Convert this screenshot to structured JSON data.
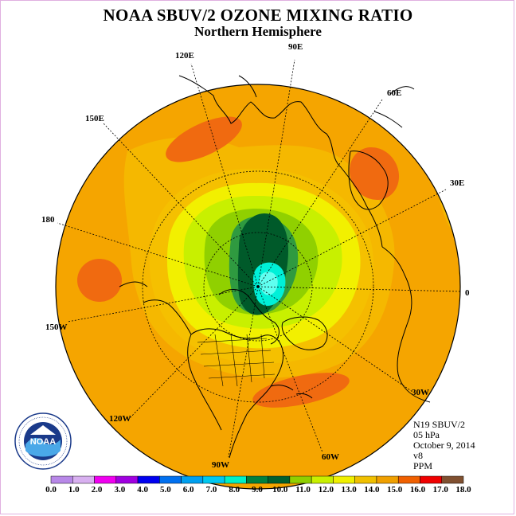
{
  "title": "NOAA SBUV/2 OZONE MIXING RATIO",
  "subtitle": "Northern Hemisphere",
  "longitude_labels": [
    "90E",
    "60E",
    "30E",
    "0",
    "30W",
    "60W",
    "90W",
    "120W",
    "150W",
    "180",
    "150E",
    "120E"
  ],
  "info": {
    "instrument": "N19 SBUV/2",
    "level": "05 hPa",
    "date": "October 9, 2014",
    "version": "v8",
    "units": "PPM"
  },
  "logo": {
    "text": "NOAA",
    "ring_text": "NATIONAL OCEANIC AND ATMOSPHERIC ADMINISTRATION · U.S. DEPARTMENT OF COMMERCE"
  },
  "colorbar": {
    "labels": [
      "0.0",
      "1.0",
      "2.0",
      "3.0",
      "4.0",
      "5.0",
      "6.0",
      "7.0",
      "8.0",
      "9.0",
      "10.0",
      "11.0",
      "12.0",
      "13.0",
      "14.0",
      "15.0",
      "16.0",
      "17.0",
      "18.0"
    ],
    "colors": [
      "#b888e8",
      "#d8b0f0",
      "#f000f0",
      "#a000e0",
      "#0000f0",
      "#0070f0",
      "#00a0f0",
      "#00c8f0",
      "#00f0c8",
      "#008040",
      "#006030",
      "#90d000",
      "#c8f000",
      "#f0f000",
      "#f0c000",
      "#f0a000",
      "#f06000",
      "#f00000",
      "#805030"
    ]
  },
  "colors": {
    "ocean_bg": "#f5a500",
    "coast": "#000000"
  }
}
